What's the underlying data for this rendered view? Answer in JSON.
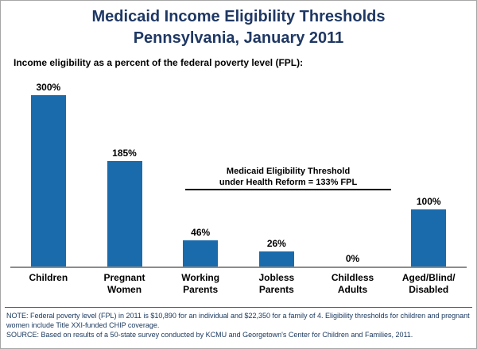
{
  "header": {
    "title_line1": "Medicaid Income Eligibility Thresholds",
    "title_line2": "Pennsylvania, January 2011",
    "subtitle": "Income eligibility as a percent of the federal poverty level (FPL):"
  },
  "chart_data": {
    "type": "bar",
    "categories": [
      "Children",
      "Pregnant Women",
      "Working Parents",
      "Jobless Parents",
      "Childless Adults",
      "Aged/Blind/Disabled"
    ],
    "category_label_lines": [
      [
        "Children"
      ],
      [
        "Pregnant",
        "Women"
      ],
      [
        "Working",
        "Parents"
      ],
      [
        "Jobless",
        "Parents"
      ],
      [
        "Childless",
        "Adults"
      ],
      [
        "Aged/Blind/",
        "Disabled"
      ]
    ],
    "values": [
      300,
      185,
      46,
      26,
      0,
      100
    ],
    "value_labels": [
      "300%",
      "185%",
      "46%",
      "26%",
      "0%",
      "100%"
    ],
    "ylim": [
      0,
      300
    ],
    "xlabel": "",
    "ylabel": "",
    "grid": false,
    "legend": false,
    "annotation": {
      "line1": "Medicaid Eligibility Threshold",
      "line2": "under Health Reform = 133% FPL",
      "threshold_value": 133
    }
  },
  "colors": {
    "bar": "#1A6BAC",
    "title": "#1F3864",
    "notes_text": "#17365D",
    "threshold_line": "#000000",
    "axis_line": "#8C8C8C"
  },
  "notes": {
    "note": "NOTE: Federal poverty level (FPL) in 2011 is $10,890 for an individual and $22,350 for a family of 4. Eligibility thresholds for children and pregnant women include Title XXI-funded CHIP coverage.",
    "source": "SOURCE: Based on results of a 50-state survey conducted by KCMU and Georgetown's Center for Children and Families, 2011."
  }
}
